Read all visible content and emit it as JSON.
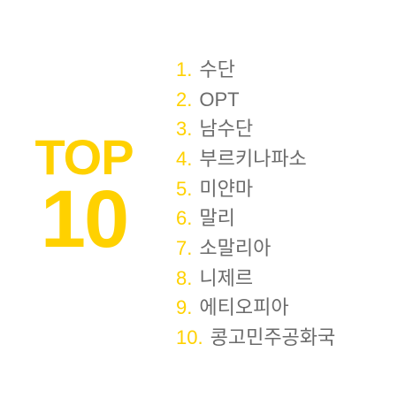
{
  "badge": {
    "word": "TOP",
    "number": "10"
  },
  "items": [
    {
      "num": "1.",
      "name": "수단"
    },
    {
      "num": "2.",
      "name": "OPT"
    },
    {
      "num": "3.",
      "name": "남수단"
    },
    {
      "num": "4.",
      "name": "부르키나파소"
    },
    {
      "num": "5.",
      "name": "미얀마"
    },
    {
      "num": "6.",
      "name": "말리"
    },
    {
      "num": "7.",
      "name": "소말리아"
    },
    {
      "num": "8.",
      "name": "니제르"
    },
    {
      "num": "9.",
      "name": "에티오피아"
    },
    {
      "num": "10.",
      "name": "콩고민주공화국"
    }
  ],
  "colors": {
    "accent": "#ffd100",
    "text": "#6b6b6b",
    "background": "#ffffff"
  }
}
